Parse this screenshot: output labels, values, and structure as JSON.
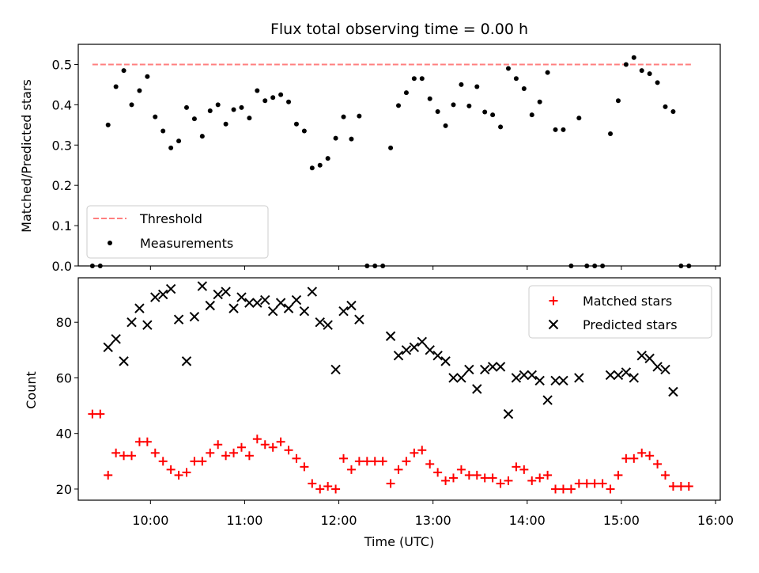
{
  "chart_data": [
    {
      "type": "scatter",
      "title": "Flux total observing time = 0.00 h",
      "xlabel": "",
      "ylabel": "Matched/Predicted stars",
      "xlim": [
        "09:14",
        "16:03"
      ],
      "ylim": [
        0,
        0.55
      ],
      "yticks": [
        "0.0",
        "0.1",
        "0.2",
        "0.3",
        "0.4",
        "0.5"
      ],
      "legend_location": "lower-left",
      "colors": {
        "threshold": "#ff7f7f",
        "measurements": "#000000"
      },
      "series": [
        {
          "name": "Threshold",
          "kind": "dashed-line",
          "points": [
            [
              "09:23",
              0.5
            ],
            [
              "15:45",
              0.5
            ]
          ]
        },
        {
          "name": "Measurements",
          "kind": "dots",
          "points": [
            [
              "09:23",
              0.0
            ],
            [
              "09:28",
              0.0
            ],
            [
              "09:33",
              0.35
            ],
            [
              "09:38",
              0.445
            ],
            [
              "09:43",
              0.485
            ],
            [
              "09:48",
              0.4
            ],
            [
              "09:53",
              0.435
            ],
            [
              "09:58",
              0.47
            ],
            [
              "10:03",
              0.37
            ],
            [
              "10:08",
              0.335
            ],
            [
              "10:13",
              0.293
            ],
            [
              "10:18",
              0.31
            ],
            [
              "10:23",
              0.393
            ],
            [
              "10:28",
              0.365
            ],
            [
              "10:33",
              0.322
            ],
            [
              "10:38",
              0.385
            ],
            [
              "10:43",
              0.4
            ],
            [
              "10:48",
              0.352
            ],
            [
              "10:53",
              0.388
            ],
            [
              "10:58",
              0.393
            ],
            [
              "11:03",
              0.367
            ],
            [
              "11:08",
              0.435
            ],
            [
              "11:13",
              0.41
            ],
            [
              "11:18",
              0.418
            ],
            [
              "11:23",
              0.425
            ],
            [
              "11:28",
              0.407
            ],
            [
              "11:33",
              0.352
            ],
            [
              "11:38",
              0.335
            ],
            [
              "11:43",
              0.243
            ],
            [
              "11:48",
              0.25
            ],
            [
              "11:53",
              0.267
            ],
            [
              "11:58",
              0.317
            ],
            [
              "12:03",
              0.37
            ],
            [
              "12:08",
              0.315
            ],
            [
              "12:13",
              0.372
            ],
            [
              "12:18",
              0.0
            ],
            [
              "12:23",
              0.0
            ],
            [
              "12:28",
              0.0
            ],
            [
              "12:33",
              0.293
            ],
            [
              "12:38",
              0.398
            ],
            [
              "12:43",
              0.43
            ],
            [
              "12:48",
              0.465
            ],
            [
              "12:53",
              0.465
            ],
            [
              "12:58",
              0.415
            ],
            [
              "13:03",
              0.383
            ],
            [
              "13:08",
              0.348
            ],
            [
              "13:13",
              0.4
            ],
            [
              "13:18",
              0.45
            ],
            [
              "13:23",
              0.397
            ],
            [
              "13:28",
              0.445
            ],
            [
              "13:33",
              0.382
            ],
            [
              "13:38",
              0.375
            ],
            [
              "13:43",
              0.345
            ],
            [
              "13:48",
              0.49
            ],
            [
              "13:53",
              0.465
            ],
            [
              "13:58",
              0.44
            ],
            [
              "14:03",
              0.375
            ],
            [
              "14:08",
              0.407
            ],
            [
              "14:13",
              0.48
            ],
            [
              "14:18",
              0.338
            ],
            [
              "14:23",
              0.338
            ],
            [
              "14:28",
              0.0
            ],
            [
              "14:33",
              0.367
            ],
            [
              "14:38",
              0.0
            ],
            [
              "14:43",
              0.0
            ],
            [
              "14:48",
              0.0
            ],
            [
              "14:53",
              0.328
            ],
            [
              "14:58",
              0.41
            ],
            [
              "15:03",
              0.5
            ],
            [
              "15:08",
              0.517
            ],
            [
              "15:13",
              0.485
            ],
            [
              "15:18",
              0.477
            ],
            [
              "15:23",
              0.455
            ],
            [
              "15:28",
              0.395
            ],
            [
              "15:33",
              0.383
            ],
            [
              "15:38",
              0.0
            ],
            [
              "15:43",
              0.0
            ]
          ]
        }
      ]
    },
    {
      "type": "scatter",
      "title": "",
      "xlabel": "Time (UTC)",
      "ylabel": "Count",
      "xlim": [
        "09:14",
        "16:03"
      ],
      "ylim": [
        16,
        96
      ],
      "yticks": [
        "20",
        "40",
        "60",
        "80"
      ],
      "xticks": [
        "10:00",
        "11:00",
        "12:00",
        "13:00",
        "14:00",
        "15:00",
        "16:00"
      ],
      "legend_location": "top-right",
      "colors": {
        "matched": "#ff0000",
        "predicted": "#000000"
      },
      "series": [
        {
          "name": "Matched stars",
          "marker": "plus",
          "points": [
            [
              "09:23",
              47
            ],
            [
              "09:28",
              47
            ],
            [
              "09:33",
              25
            ],
            [
              "09:38",
              33
            ],
            [
              "09:43",
              32
            ],
            [
              "09:48",
              32
            ],
            [
              "09:53",
              37
            ],
            [
              "09:58",
              37
            ],
            [
              "10:03",
              33
            ],
            [
              "10:08",
              30
            ],
            [
              "10:13",
              27
            ],
            [
              "10:18",
              25
            ],
            [
              "10:23",
              26
            ],
            [
              "10:28",
              30
            ],
            [
              "10:33",
              30
            ],
            [
              "10:38",
              33
            ],
            [
              "10:43",
              36
            ],
            [
              "10:48",
              32
            ],
            [
              "10:53",
              33
            ],
            [
              "10:58",
              35
            ],
            [
              "11:03",
              32
            ],
            [
              "11:08",
              38
            ],
            [
              "11:13",
              36
            ],
            [
              "11:18",
              35
            ],
            [
              "11:23",
              37
            ],
            [
              "11:28",
              34
            ],
            [
              "11:33",
              31
            ],
            [
              "11:38",
              28
            ],
            [
              "11:43",
              22
            ],
            [
              "11:48",
              20
            ],
            [
              "11:53",
              21
            ],
            [
              "11:58",
              20
            ],
            [
              "12:03",
              31
            ],
            [
              "12:08",
              27
            ],
            [
              "12:13",
              30
            ],
            [
              "12:18",
              30
            ],
            [
              "12:23",
              30
            ],
            [
              "12:28",
              30
            ],
            [
              "12:33",
              22
            ],
            [
              "12:38",
              27
            ],
            [
              "12:43",
              30
            ],
            [
              "12:48",
              33
            ],
            [
              "12:53",
              34
            ],
            [
              "12:58",
              29
            ],
            [
              "13:03",
              26
            ],
            [
              "13:08",
              23
            ],
            [
              "13:13",
              24
            ],
            [
              "13:18",
              27
            ],
            [
              "13:23",
              25
            ],
            [
              "13:28",
              25
            ],
            [
              "13:33",
              24
            ],
            [
              "13:38",
              24
            ],
            [
              "13:43",
              22
            ],
            [
              "13:48",
              23
            ],
            [
              "13:53",
              28
            ],
            [
              "13:58",
              27
            ],
            [
              "14:03",
              23
            ],
            [
              "14:08",
              24
            ],
            [
              "14:13",
              25
            ],
            [
              "14:18",
              20
            ],
            [
              "14:23",
              20
            ],
            [
              "14:28",
              20
            ],
            [
              "14:33",
              22
            ],
            [
              "14:38",
              22
            ],
            [
              "14:43",
              22
            ],
            [
              "14:48",
              22
            ],
            [
              "14:53",
              20
            ],
            [
              "14:58",
              25
            ],
            [
              "15:03",
              31
            ],
            [
              "15:08",
              31
            ],
            [
              "15:13",
              33
            ],
            [
              "15:18",
              32
            ],
            [
              "15:23",
              29
            ],
            [
              "15:28",
              25
            ],
            [
              "15:33",
              21
            ],
            [
              "15:38",
              21
            ],
            [
              "15:43",
              21
            ]
          ]
        },
        {
          "name": "Predicted stars",
          "marker": "x",
          "points": [
            [
              "09:33",
              71
            ],
            [
              "09:38",
              74
            ],
            [
              "09:43",
              66
            ],
            [
              "09:48",
              80
            ],
            [
              "09:53",
              85
            ],
            [
              "09:58",
              79
            ],
            [
              "10:03",
              89
            ],
            [
              "10:08",
              90
            ],
            [
              "10:13",
              92
            ],
            [
              "10:18",
              81
            ],
            [
              "10:23",
              66
            ],
            [
              "10:28",
              82
            ],
            [
              "10:33",
              93
            ],
            [
              "10:38",
              86
            ],
            [
              "10:43",
              90
            ],
            [
              "10:48",
              91
            ],
            [
              "10:53",
              85
            ],
            [
              "10:58",
              89
            ],
            [
              "11:03",
              87
            ],
            [
              "11:08",
              87
            ],
            [
              "11:13",
              88
            ],
            [
              "11:18",
              84
            ],
            [
              "11:23",
              87
            ],
            [
              "11:28",
              85
            ],
            [
              "11:33",
              88
            ],
            [
              "11:38",
              84
            ],
            [
              "11:43",
              91
            ],
            [
              "11:48",
              80
            ],
            [
              "11:53",
              79
            ],
            [
              "11:58",
              63
            ],
            [
              "12:03",
              84
            ],
            [
              "12:08",
              86
            ],
            [
              "12:13",
              81
            ],
            [
              "12:33",
              75
            ],
            [
              "12:38",
              68
            ],
            [
              "12:43",
              70
            ],
            [
              "12:48",
              71
            ],
            [
              "12:53",
              73
            ],
            [
              "12:58",
              70
            ],
            [
              "13:03",
              68
            ],
            [
              "13:08",
              66
            ],
            [
              "13:13",
              60
            ],
            [
              "13:18",
              60
            ],
            [
              "13:23",
              63
            ],
            [
              "13:28",
              56
            ],
            [
              "13:33",
              63
            ],
            [
              "13:38",
              64
            ],
            [
              "13:43",
              64
            ],
            [
              "13:48",
              47
            ],
            [
              "13:53",
              60
            ],
            [
              "13:58",
              61
            ],
            [
              "14:03",
              61
            ],
            [
              "14:08",
              59
            ],
            [
              "14:13",
              52
            ],
            [
              "14:18",
              59
            ],
            [
              "14:23",
              59
            ],
            [
              "14:33",
              60
            ],
            [
              "14:53",
              61
            ],
            [
              "14:58",
              61
            ],
            [
              "15:03",
              62
            ],
            [
              "15:08",
              60
            ],
            [
              "15:13",
              68
            ],
            [
              "15:18",
              67
            ],
            [
              "15:23",
              64
            ],
            [
              "15:28",
              63
            ],
            [
              "15:33",
              55
            ]
          ]
        }
      ]
    }
  ]
}
